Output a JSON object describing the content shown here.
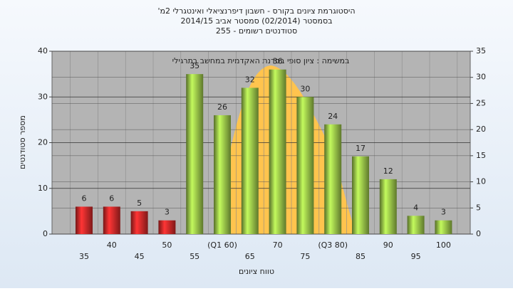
{
  "chart_data": {
    "type": "bar",
    "title": "'היסטוגרמת ציונים בקורס - חשבון דיפרנציאלי ואינטגרלי 2מ",
    "subtitle": [
      "בסמסטר  (02/2014)  סמסטר אביב 2014/15",
      "סטודנטים רשומים - 255"
    ],
    "annotation": "במשימה : ציון סופי בסדנת האקדמית במחשב בתרגילי",
    "x_label": "טווח ציונים",
    "y_label": "מספר סטודנטים",
    "categories": [
      "35",
      "40",
      "45",
      "50",
      "55",
      "(Q1 60)",
      "65",
      "70",
      "75",
      "(Q3 80)",
      "85",
      "90",
      "95",
      "100"
    ],
    "values": [
      6,
      6,
      5,
      3,
      35,
      26,
      32,
      36,
      30,
      24,
      17,
      12,
      4,
      3
    ],
    "colors": [
      "#d42a2a",
      "#d42a2a",
      "#d42a2a",
      "#d42a2a",
      "#9cc84a",
      "#9cc84a",
      "#9cc84a",
      "#9cc84a",
      "#9cc84a",
      "#9cc84a",
      "#9cc84a",
      "#9cc84a",
      "#9cc84a",
      "#9cc84a"
    ],
    "ylim": [
      0,
      40
    ],
    "yticks": [
      0,
      10,
      20,
      30,
      40
    ],
    "y2lim": [
      0,
      35
    ],
    "y2ticks": [
      0,
      5,
      10,
      15,
      20,
      25,
      30,
      35
    ],
    "grid": true
  }
}
